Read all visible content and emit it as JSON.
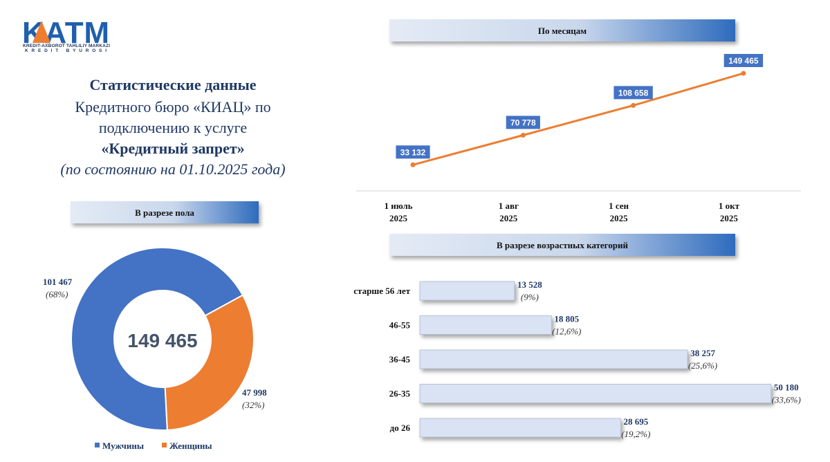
{
  "logo": {
    "mark": "KATM",
    "line1": "KREDIT-AXBOROT TAHLILIY MARKAZI",
    "line2": "KREDIT BYUROSI"
  },
  "heading": {
    "line1": "Статистические данные",
    "line2": "Кредитного бюро «КИАЦ» по",
    "line3": "подключению к услуге",
    "line4": "«Кредитный запрет»",
    "line5": "(по состоянию на 01.10.2025 года)"
  },
  "chart_data": [
    {
      "type": "line",
      "title": "По месяцам",
      "categories": [
        "1 июль 2025",
        "1 авг 2025",
        "1 сен 2025",
        "1 окт 2025"
      ],
      "values": [
        33132,
        70778,
        108658,
        149465
      ],
      "value_labels": [
        "33 132",
        "70 778",
        "108 658",
        "149 465"
      ],
      "color": "#ed7d31",
      "label_color": "#4472c4",
      "ylim": [
        0,
        160000
      ]
    },
    {
      "type": "pie",
      "donut": true,
      "title": "В разрезе пола",
      "categories": [
        "Мужчины",
        "Женщины"
      ],
      "values": [
        101467,
        47998
      ],
      "value_labels": [
        "101 467",
        "47 998"
      ],
      "share_labels": [
        "(68%)",
        "(32%)"
      ],
      "colors": [
        "#4472c4",
        "#ed7d31"
      ],
      "center_label": "149 465"
    },
    {
      "type": "bar",
      "orientation": "horizontal",
      "title": "В разрезе возрастных категорий",
      "categories": [
        "старше 56 лет",
        "46-55",
        "36-45",
        "26-35",
        "до 26"
      ],
      "values": [
        13528,
        18805,
        38257,
        50180,
        28695
      ],
      "value_labels": [
        "13 528",
        "18 805",
        "38 257",
        "50 180",
        "28 695"
      ],
      "share_labels": [
        "(9%)",
        "(12,6%)",
        "(25,6%)",
        "(33,6%)",
        "(19,2%)"
      ],
      "color": "#dae3f3",
      "xlim": [
        0,
        51000
      ]
    }
  ]
}
